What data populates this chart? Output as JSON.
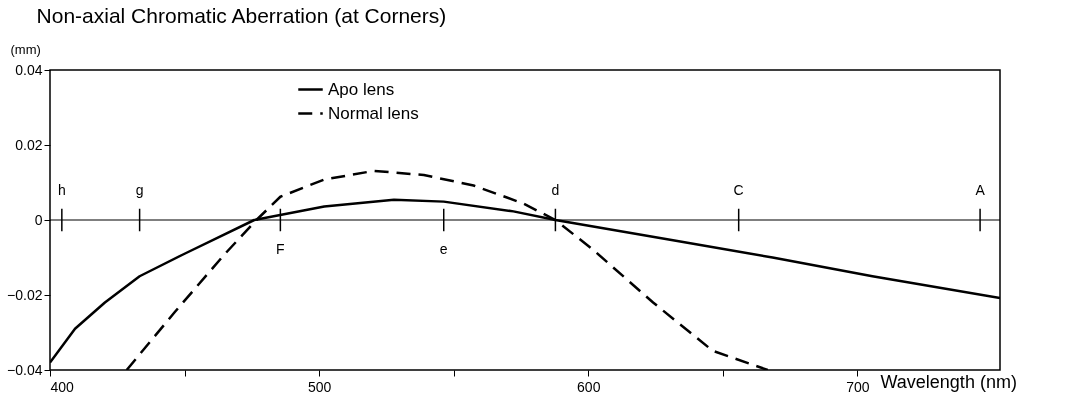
{
  "chart_data": {
    "type": "line",
    "title": "Non-axial Chromatic Aberration (at Corners)",
    "xlabel": "Wavelength (nm)",
    "ylabel": "(mm)",
    "xlim": [
      400,
      753
    ],
    "xticks": [
      400,
      {
        "value": 450,
        "label": null
      },
      500,
      {
        "value": 550,
        "label": null
      },
      600,
      {
        "value": 650,
        "label": null
      },
      700
    ],
    "ylim": [
      -0.04,
      0.04
    ],
    "yticks": [
      {
        "value": -0.04,
        "label": "−0.04"
      },
      {
        "value": -0.02,
        "label": "−0.02"
      },
      0,
      0.02,
      0.04
    ],
    "legend": "top left",
    "grid": false,
    "series": [
      {
        "name": "Apo lens",
        "color": "#000000",
        "line_style": "solid",
        "x": [
          400,
          409.3,
          420.4,
          433.3,
          450,
          475.9,
          501.9,
          527.8,
          546.3,
          572.2,
          587.8,
          631.5,
          668.5,
          705.6,
          753
        ],
        "values": [
          -0.038,
          -0.029,
          -0.022,
          -0.015,
          -0.009,
          0,
          0.0036,
          0.0054,
          0.0049,
          0.0023,
          0,
          -0.0054,
          -0.01,
          -0.015,
          -0.0208
        ]
      },
      {
        "name": "Normal lens",
        "color": "#000000",
        "line_style": "dashed",
        "x": [
          428.5,
          446.3,
          464.8,
          476.7,
          485.6,
          501.9,
          520.4,
          538.9,
          557.4,
          575.9,
          587.8,
          601.9,
          624.1,
          646.3,
          666.7
        ],
        "values": [
          -0.04,
          -0.0246,
          -0.0092,
          0,
          0.0062,
          0.0108,
          0.0131,
          0.012,
          0.0092,
          0.0044,
          0,
          -0.008,
          -0.022,
          -0.0349,
          -0.04
        ]
      }
    ],
    "ref_lines": [
      {
        "axis": "y",
        "value": 0,
        "label": null
      },
      {
        "axis": "x",
        "value": 404.4,
        "label": "h"
      },
      {
        "axis": "x",
        "value": 433.3,
        "label": "g"
      },
      {
        "axis": "x",
        "value": 485.6,
        "label": "F"
      },
      {
        "axis": "x",
        "value": 546.3,
        "label": "e"
      },
      {
        "axis": "x",
        "value": 587.8,
        "label": "d"
      },
      {
        "axis": "x",
        "value": 655.9,
        "label": "C"
      },
      {
        "axis": "x",
        "value": 745.6,
        "label": "A"
      }
    ]
  }
}
